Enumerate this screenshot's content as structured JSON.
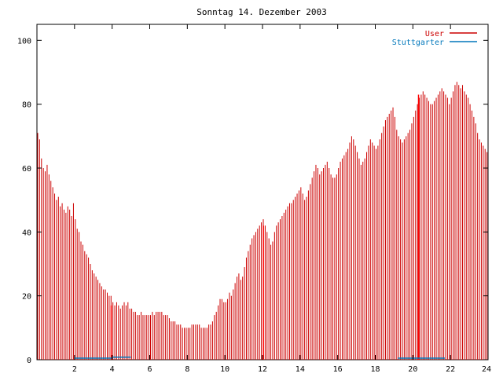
{
  "chart_data": {
    "type": "bar",
    "title": "Sonntag 14. Dezember 2003",
    "xlabel": "",
    "ylabel": "",
    "xlim": [
      0,
      24
    ],
    "ylim": [
      0,
      105
    ],
    "xticks": [
      2,
      4,
      6,
      8,
      10,
      12,
      14,
      16,
      18,
      20,
      22,
      24
    ],
    "yticks": [
      0,
      20,
      40,
      60,
      80,
      100
    ],
    "grid": false,
    "legend_position": "top-right",
    "series": [
      {
        "name": "User",
        "color": "#cc0000",
        "step_hours": 0.1,
        "start_hour": 0,
        "values": [
          71,
          69,
          63,
          60,
          59,
          61,
          58,
          56,
          54,
          52,
          50,
          51,
          48,
          49,
          47,
          46,
          48,
          47,
          45,
          49,
          44,
          41,
          40,
          37,
          36,
          34,
          33,
          32,
          30,
          28,
          27,
          26,
          25,
          24,
          23,
          22,
          22,
          21,
          20,
          20,
          18,
          17,
          18,
          17,
          16,
          17,
          18,
          17,
          18,
          16,
          16,
          15,
          15,
          14,
          14,
          15,
          14,
          14,
          14,
          14,
          14,
          15,
          14,
          15,
          15,
          15,
          15,
          14,
          14,
          14,
          13,
          12,
          12,
          12,
          11,
          11,
          11,
          10,
          10,
          10,
          10,
          10,
          11,
          11,
          11,
          11,
          11,
          10,
          10,
          10,
          10,
          11,
          11,
          12,
          14,
          15,
          17,
          19,
          19,
          18,
          18,
          19,
          21,
          20,
          22,
          24,
          26,
          27,
          25,
          26,
          29,
          32,
          34,
          36,
          38,
          39,
          40,
          41,
          42,
          43,
          44,
          42,
          40,
          38,
          36,
          37,
          40,
          42,
          43,
          44,
          45,
          46,
          47,
          48,
          49,
          49,
          50,
          51,
          52,
          53,
          54,
          52,
          50,
          51,
          53,
          55,
          57,
          59,
          61,
          60,
          58,
          59,
          60,
          61,
          62,
          60,
          58,
          57,
          57,
          58,
          60,
          62,
          63,
          64,
          65,
          66,
          68,
          70,
          69,
          67,
          65,
          63,
          61,
          62,
          63,
          65,
          67,
          69,
          68,
          67,
          66,
          67,
          69,
          71,
          73,
          75,
          76,
          77,
          78,
          79,
          76,
          72,
          70,
          69,
          68,
          69,
          70,
          71,
          72,
          74,
          76,
          78,
          80,
          82,
          83,
          84,
          83,
          82,
          81,
          80,
          80,
          81,
          82,
          83,
          84,
          85,
          84,
          83,
          82,
          80,
          82,
          84,
          86,
          87,
          86,
          85,
          86,
          84,
          83,
          82,
          80,
          78,
          76,
          74,
          71,
          69,
          68,
          67,
          66,
          65
        ]
      },
      {
        "name": "Stuttgarter",
        "color": "#0077bb",
        "segments": [
          {
            "x_start": 2,
            "x_end": 4,
            "y": 0.5
          },
          {
            "x_start": 4,
            "x_end": 5,
            "y": 0.8
          },
          {
            "x_start": 19.2,
            "x_end": 21.7,
            "y": 0.5
          }
        ]
      }
    ],
    "highlight_bars": [
      {
        "x": 3.95,
        "value": 17,
        "color": "#ff0000"
      },
      {
        "x": 12.05,
        "value": 42,
        "color": "#ff0000"
      },
      {
        "x": 20.3,
        "value": 83,
        "color": "#ff0000"
      }
    ],
    "axis_color": "#000000"
  }
}
